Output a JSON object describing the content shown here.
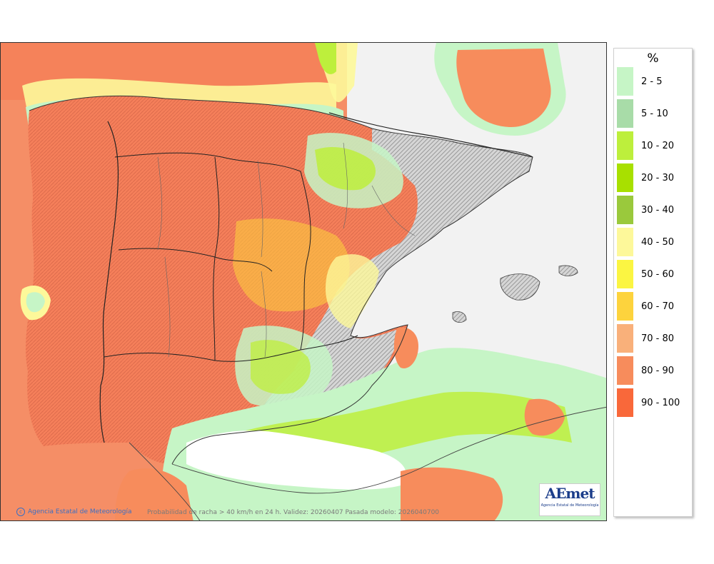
{
  "map": {
    "title": "Probabilidad de racha > 40 km/h en 24 h. Validez: 20260407 Pasada modelo: 2026040700",
    "agency_credit": "Agencia Estatal de Meteorología",
    "logo_text": "AEmet",
    "logo_subtext": "Agencia Estatal de Meteorología"
  },
  "legend": {
    "unit": "%",
    "classes": [
      {
        "label": "2 - 5",
        "color": "#c6f5c6"
      },
      {
        "label": "5 - 10",
        "color": "#a8dca8"
      },
      {
        "label": "10 - 20",
        "color": "#bdef3c"
      },
      {
        "label": "20 - 30",
        "color": "#a8e000"
      },
      {
        "label": "30 - 40",
        "color": "#9ac93c"
      },
      {
        "label": "40 - 50",
        "color": "#fdf89a"
      },
      {
        "label": "50 - 60",
        "color": "#fbf542"
      },
      {
        "label": "60 - 70",
        "color": "#fdd33d"
      },
      {
        "label": "70 - 80",
        "color": "#f9b07a"
      },
      {
        "label": "80 - 90",
        "color": "#f78c5c"
      },
      {
        "label": "90 - 100",
        "color": "#f9683a"
      }
    ]
  }
}
